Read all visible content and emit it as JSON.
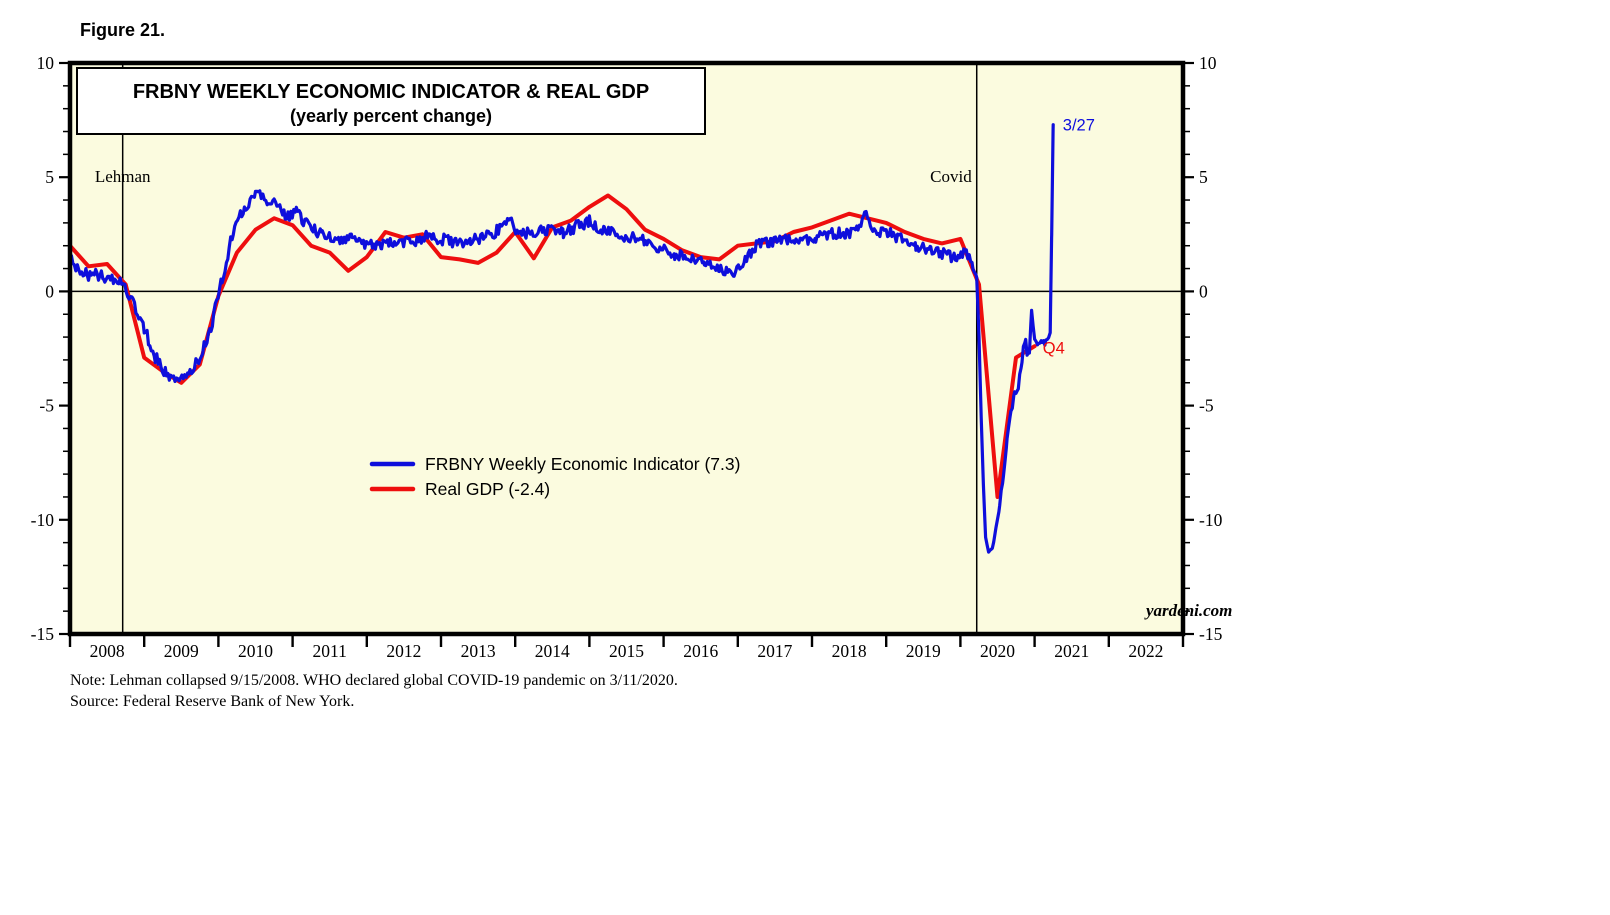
{
  "page": {
    "figure_label": "Figure 21."
  },
  "footer": {
    "note": "Note: Lehman collapsed 9/15/2008. WHO declared global COVID-19 pandemic on 3/11/2020.",
    "source": "Source: Federal Reserve Bank of New York."
  },
  "chart_data": {
    "type": "line",
    "title": "FRBNY WEEKLY ECONOMIC INDICATOR & REAL GDP",
    "subtitle": "(yearly percent change)",
    "xlabel": "",
    "ylabel": "yearly percent change",
    "xlim": [
      2008,
      2023
    ],
    "ylim": [
      -15,
      10
    ],
    "y_major_ticks": [
      10,
      5,
      0,
      -5,
      -10,
      -15
    ],
    "y_minor_step": 1,
    "x_tick_years": [
      2008,
      2009,
      2010,
      2011,
      2012,
      2013,
      2014,
      2015,
      2016,
      2017,
      2018,
      2019,
      2020,
      2021,
      2022
    ],
    "grid": "zero line only",
    "background_color": "#FBFBDF",
    "frame_color": "#000000",
    "watermark": "yardeni.com",
    "legend_position": "inside center-left",
    "event_lines": [
      {
        "year": 2008.71,
        "label": "Lehman",
        "label_value": 4.8,
        "align": "middle"
      },
      {
        "year": 2020.22,
        "label": "Covid",
        "label_value": 4.8,
        "align": "end"
      }
    ],
    "annotations": [
      {
        "text": "3/27",
        "series": 0,
        "x": 2021.38,
        "value": 7.3,
        "color": "#0E0EDC"
      },
      {
        "text": "Q4",
        "series": 1,
        "x": 2021.11,
        "value": -2.45,
        "color": "#EE0E0E"
      }
    ],
    "series": [
      {
        "name": "FRBNY Weekly Economic Indicator",
        "legend_label": "FRBNY Weekly Economic Indicator (7.3)",
        "latest_label": "3/27",
        "latest_value": 7.3,
        "color": "#0E0EDC",
        "width": 3.2,
        "sampling": "weekly, linear interpolation between anchors with jitter amplitude (3rd element)",
        "anchors": [
          [
            2008.0,
            1.55,
            0.28
          ],
          [
            2008.08,
            0.95,
            0.28
          ],
          [
            2008.25,
            0.75,
            0.28
          ],
          [
            2008.45,
            0.65,
            0.25
          ],
          [
            2008.6,
            0.55,
            0.22
          ],
          [
            2008.72,
            0.3,
            0.22
          ],
          [
            2008.85,
            -0.55,
            0.25
          ],
          [
            2009.0,
            -1.6,
            0.25
          ],
          [
            2009.15,
            -2.9,
            0.28
          ],
          [
            2009.3,
            -3.6,
            0.25
          ],
          [
            2009.45,
            -3.8,
            0.25
          ],
          [
            2009.6,
            -3.55,
            0.25
          ],
          [
            2009.75,
            -2.95,
            0.25
          ],
          [
            2009.9,
            -1.6,
            0.25
          ],
          [
            2010.05,
            0.6,
            0.25
          ],
          [
            2010.2,
            2.6,
            0.28
          ],
          [
            2010.35,
            3.7,
            0.28
          ],
          [
            2010.5,
            4.35,
            0.25
          ],
          [
            2010.6,
            4.1,
            0.25
          ],
          [
            2010.75,
            3.8,
            0.25
          ],
          [
            2010.9,
            3.3,
            0.28
          ],
          [
            2011.05,
            3.45,
            0.28
          ],
          [
            2011.2,
            2.9,
            0.25
          ],
          [
            2011.4,
            2.45,
            0.25
          ],
          [
            2011.6,
            2.25,
            0.22
          ],
          [
            2011.8,
            2.3,
            0.22
          ],
          [
            2012.0,
            2.05,
            0.22
          ],
          [
            2012.2,
            2.1,
            0.25
          ],
          [
            2012.4,
            2.2,
            0.25
          ],
          [
            2012.6,
            2.15,
            0.25
          ],
          [
            2012.8,
            2.4,
            0.25
          ],
          [
            2013.0,
            2.3,
            0.25
          ],
          [
            2013.2,
            2.15,
            0.25
          ],
          [
            2013.4,
            2.25,
            0.25
          ],
          [
            2013.6,
            2.4,
            0.25
          ],
          [
            2013.8,
            2.7,
            0.28
          ],
          [
            2013.93,
            3.25,
            0.28
          ],
          [
            2014.05,
            2.45,
            0.25
          ],
          [
            2014.25,
            2.6,
            0.25
          ],
          [
            2014.45,
            2.7,
            0.25
          ],
          [
            2014.65,
            2.6,
            0.25
          ],
          [
            2014.85,
            2.9,
            0.28
          ],
          [
            2015.0,
            3.05,
            0.28
          ],
          [
            2015.2,
            2.7,
            0.25
          ],
          [
            2015.45,
            2.45,
            0.25
          ],
          [
            2015.7,
            2.25,
            0.25
          ],
          [
            2015.95,
            1.9,
            0.25
          ],
          [
            2016.15,
            1.6,
            0.25
          ],
          [
            2016.35,
            1.45,
            0.25
          ],
          [
            2016.55,
            1.2,
            0.25
          ],
          [
            2016.75,
            1.0,
            0.25
          ],
          [
            2016.95,
            0.85,
            0.25
          ],
          [
            2017.1,
            1.3,
            0.25
          ],
          [
            2017.25,
            2.05,
            0.25
          ],
          [
            2017.45,
            2.15,
            0.22
          ],
          [
            2017.65,
            2.25,
            0.22
          ],
          [
            2017.85,
            2.15,
            0.22
          ],
          [
            2018.05,
            2.35,
            0.25
          ],
          [
            2018.25,
            2.5,
            0.25
          ],
          [
            2018.45,
            2.55,
            0.25
          ],
          [
            2018.62,
            2.65,
            0.25
          ],
          [
            2018.71,
            3.55,
            0.1
          ],
          [
            2018.8,
            2.7,
            0.25
          ],
          [
            2019.0,
            2.6,
            0.25
          ],
          [
            2019.2,
            2.3,
            0.25
          ],
          [
            2019.4,
            2.0,
            0.25
          ],
          [
            2019.6,
            1.85,
            0.25
          ],
          [
            2019.8,
            1.6,
            0.25
          ],
          [
            2019.95,
            1.35,
            0.28
          ],
          [
            2020.08,
            1.7,
            0.25
          ],
          [
            2020.17,
            1.1,
            0.22
          ],
          [
            2020.22,
            0.6,
            0.1
          ],
          [
            2020.25,
            -2.0,
            0.05
          ],
          [
            2020.28,
            -5.5,
            0.05
          ],
          [
            2020.31,
            -8.5,
            0.05
          ],
          [
            2020.34,
            -10.8,
            0.05
          ],
          [
            2020.38,
            -11.4,
            0.05
          ],
          [
            2020.43,
            -11.25,
            0.08
          ],
          [
            2020.48,
            -10.4,
            0.1
          ],
          [
            2020.53,
            -9.3,
            0.1
          ],
          [
            2020.58,
            -8.0,
            0.12
          ],
          [
            2020.63,
            -6.4,
            0.12
          ],
          [
            2020.68,
            -5.3,
            0.12
          ],
          [
            2020.73,
            -4.5,
            0.15
          ],
          [
            2020.78,
            -4.1,
            0.2
          ],
          [
            2020.83,
            -3.0,
            0.35
          ],
          [
            2020.88,
            -2.4,
            0.4
          ],
          [
            2020.93,
            -2.6,
            0.45
          ],
          [
            2020.96,
            -0.9,
            0.2
          ],
          [
            2021.0,
            -2.4,
            0.4
          ],
          [
            2021.05,
            -2.2,
            0.35
          ],
          [
            2021.1,
            -2.5,
            0.3
          ],
          [
            2021.15,
            -2.3,
            0.25
          ],
          [
            2021.19,
            -2.0,
            0.15
          ],
          [
            2021.21,
            -1.8,
            0.05
          ],
          [
            2021.23,
            2.5,
            0
          ],
          [
            2021.25,
            7.3,
            0
          ]
        ]
      },
      {
        "name": "Real GDP",
        "legend_label": "Real GDP (-2.4)",
        "latest_label": "Q4",
        "latest_value": -2.4,
        "color": "#EE0E0E",
        "width": 4,
        "sampling": "quarterly (plotted at quarter-end)",
        "points": [
          [
            2008.0,
            2.0
          ],
          [
            2008.25,
            1.1
          ],
          [
            2008.5,
            1.2
          ],
          [
            2008.75,
            0.3
          ],
          [
            2009.0,
            -2.9
          ],
          [
            2009.25,
            -3.5
          ],
          [
            2009.5,
            -4.0
          ],
          [
            2009.75,
            -3.2
          ],
          [
            2010.0,
            -0.2
          ],
          [
            2010.25,
            1.7
          ],
          [
            2010.5,
            2.7
          ],
          [
            2010.75,
            3.2
          ],
          [
            2011.0,
            2.9
          ],
          [
            2011.25,
            2.0
          ],
          [
            2011.5,
            1.7
          ],
          [
            2011.75,
            0.9
          ],
          [
            2012.0,
            1.5
          ],
          [
            2012.25,
            2.6
          ],
          [
            2012.5,
            2.35
          ],
          [
            2012.75,
            2.5
          ],
          [
            2013.0,
            1.5
          ],
          [
            2013.25,
            1.4
          ],
          [
            2013.5,
            1.25
          ],
          [
            2013.75,
            1.7
          ],
          [
            2014.0,
            2.6
          ],
          [
            2014.25,
            1.45
          ],
          [
            2014.5,
            2.8
          ],
          [
            2014.75,
            3.1
          ],
          [
            2015.0,
            3.7
          ],
          [
            2015.25,
            4.2
          ],
          [
            2015.5,
            3.6
          ],
          [
            2015.75,
            2.7
          ],
          [
            2016.0,
            2.3
          ],
          [
            2016.25,
            1.8
          ],
          [
            2016.5,
            1.5
          ],
          [
            2016.75,
            1.4
          ],
          [
            2017.0,
            2.0
          ],
          [
            2017.25,
            2.1
          ],
          [
            2017.5,
            2.2
          ],
          [
            2017.75,
            2.6
          ],
          [
            2018.0,
            2.8
          ],
          [
            2018.25,
            3.1
          ],
          [
            2018.5,
            3.4
          ],
          [
            2018.75,
            3.2
          ],
          [
            2019.0,
            3.0
          ],
          [
            2019.25,
            2.6
          ],
          [
            2019.5,
            2.3
          ],
          [
            2019.75,
            2.1
          ],
          [
            2020.0,
            2.3
          ],
          [
            2020.25,
            0.3
          ],
          [
            2020.5,
            -9.0
          ],
          [
            2020.75,
            -2.9
          ],
          [
            2021.0,
            -2.4
          ]
        ]
      }
    ]
  }
}
